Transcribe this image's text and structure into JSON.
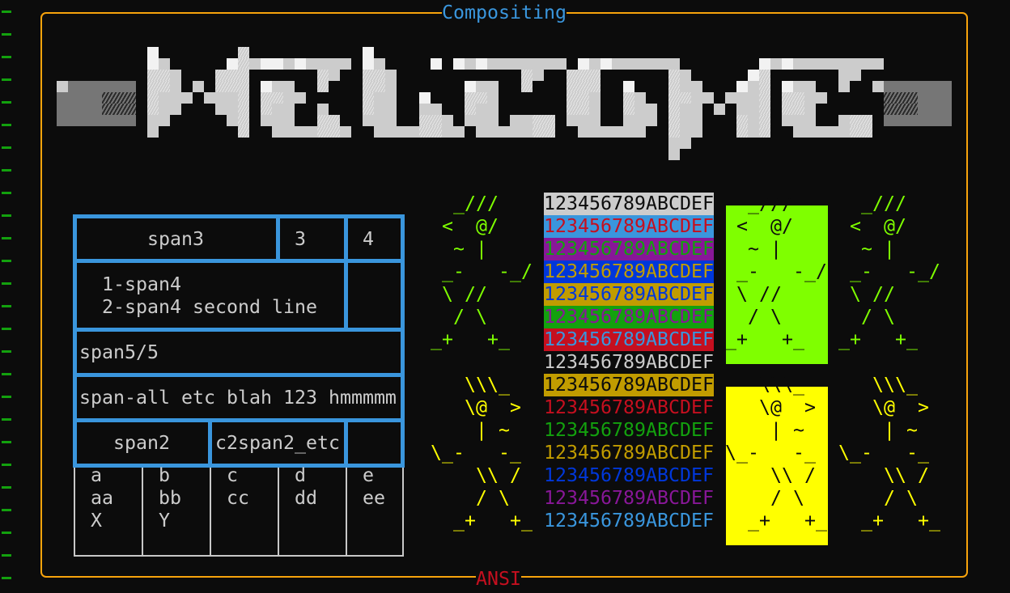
{
  "frame": {
    "title": "Compositing",
    "footer": "ANSI",
    "border_color": "#f7a30c",
    "title_color": "#3a96dd",
    "footer_color": "#c50f1f"
  },
  "gutter": {
    "marker_icon": "green-dash-marker",
    "color": "#13a10e"
  },
  "logo": {
    "icon": "block-art-logo"
  },
  "table": {
    "row1": {
      "span3": "span3",
      "c3": "3",
      "c4": "4"
    },
    "row2": {
      "line1": "1-span4",
      "line2": "2-span4 second line"
    },
    "row3": {
      "text": "span5/5"
    },
    "row4": {
      "text": "span-all etc blah 123 hmmmmm"
    },
    "row5": {
      "span2": "span2",
      "c2span2": "c2span2_etc"
    },
    "grid": [
      [
        "a",
        "aa",
        "X"
      ],
      [
        "b",
        "bb",
        "Y"
      ],
      [
        "c",
        "cc",
        ""
      ],
      [
        "d",
        "dd",
        ""
      ],
      [
        "e",
        "ee",
        ""
      ]
    ]
  },
  "figures": {
    "top_lines": [
      "  _///",
      " <  @/",
      "  ~ |",
      " _-   -_/",
      " \\ //",
      "  / \\",
      "_+   +_"
    ],
    "bottom_lines": [
      "   \\\\\\_",
      "   \\@  >",
      "    | ~",
      "\\_-   -_",
      "    \\\\ /",
      "    / \\",
      "  _+   +_"
    ],
    "top_color": "#7fff00",
    "bottom_color": "#ffff00"
  },
  "color_lines": [
    {
      "text": "123456789ABCDEF",
      "fg": "#0c0c0c",
      "bg": "#cccccc"
    },
    {
      "text": "123456789ABCDEF",
      "fg": "#c50f1f",
      "bg": "#3a96dd"
    },
    {
      "text": "123456789ABCDEF",
      "fg": "#13a10e",
      "bg": "#881798"
    },
    {
      "text": "123456789ABCDEF",
      "fg": "#c19c00",
      "bg": "#0037da"
    },
    {
      "text": "123456789ABCDEF",
      "fg": "#0037da",
      "bg": "#c19c00"
    },
    {
      "text": "123456789ABCDEF",
      "fg": "#881798",
      "bg": "#13a10e"
    },
    {
      "text": "123456789ABCDEF",
      "fg": "#3a96dd",
      "bg": "#c50f1f"
    },
    {
      "text": "123456789ABCDEF",
      "fg": "#cccccc",
      "bg": ""
    },
    {
      "text": "123456789ABCDEF",
      "fg": "#0c0c0c",
      "bg": "#c19c00"
    },
    {
      "text": "123456789ABCDEF",
      "fg": "#c50f1f",
      "bg": ""
    },
    {
      "text": "123456789ABCDEF",
      "fg": "#13a10e",
      "bg": ""
    },
    {
      "text": "123456789ABCDEF",
      "fg": "#c19c00",
      "bg": ""
    },
    {
      "text": "123456789ABCDEF",
      "fg": "#0037da",
      "bg": ""
    },
    {
      "text": "123456789ABCDEF",
      "fg": "#881798",
      "bg": ""
    },
    {
      "text": "123456789ABCDEF",
      "fg": "#3a96dd",
      "bg": ""
    }
  ]
}
